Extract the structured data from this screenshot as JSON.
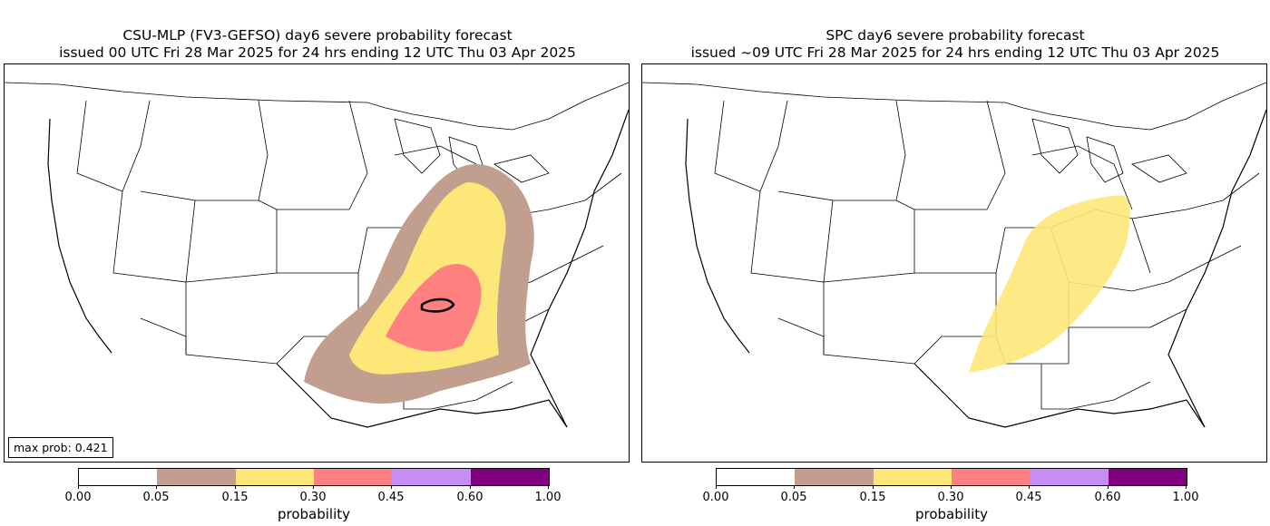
{
  "left_panel": {
    "title_line1": "CSU-MLP (FV3-GEFSO) day6 severe probability forecast",
    "title_line2": "issued 00 UTC Fri 28 Mar 2025 for 24 hrs ending 12 UTC Thu 03 Apr 2025",
    "max_prob_label": "max prob: 0.421"
  },
  "right_panel": {
    "title_line1": "SPC day6 severe probability forecast",
    "title_line2": "issued ~09 UTC Fri 28 Mar 2025 for 24 hrs ending 12 UTC Thu 03 Apr 2025"
  },
  "colorbar": {
    "label": "probability",
    "ticks": [
      "0.00",
      "0.05",
      "0.15",
      "0.30",
      "0.45",
      "0.60",
      "1.00"
    ],
    "colors": [
      "#ffffff",
      "#c19e8e",
      "#fde779",
      "#fe8080",
      "#c58ef0",
      "#800080"
    ]
  },
  "map": {
    "border_color": "#000000",
    "background": "#ffffff"
  }
}
